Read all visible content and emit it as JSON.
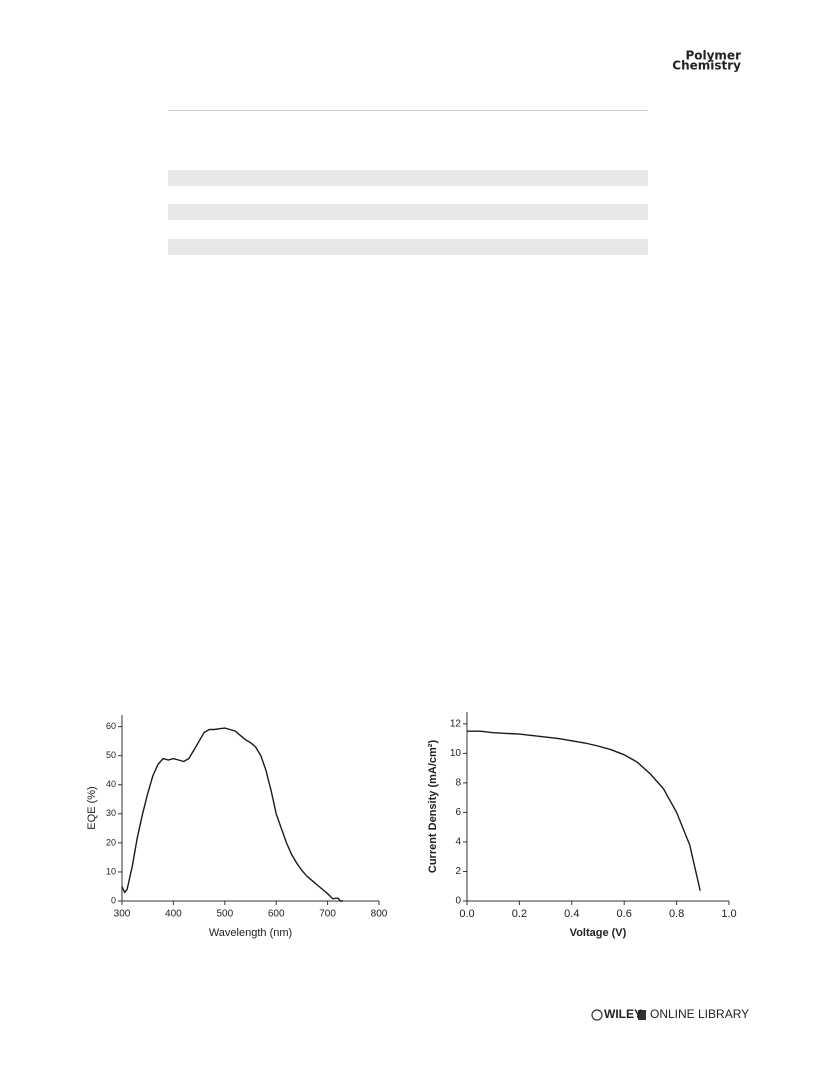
{
  "header": {
    "journal": [
      "Polymer",
      "Chemistry"
    ]
  },
  "chart_data": [
    {
      "type": "line",
      "x_label": "Wavelength (nm)",
      "y_label": "EQE (%)",
      "xlim": [
        300,
        800
      ],
      "xticks": [
        300,
        400,
        500,
        600,
        700,
        800
      ],
      "ylim": [
        0,
        64
      ],
      "yticks": [
        0,
        10,
        20,
        30,
        40,
        50,
        60
      ],
      "series": [
        {
          "color": "#1a1a1a",
          "x": [
            300,
            305,
            310,
            320,
            330,
            340,
            350,
            360,
            370,
            380,
            390,
            400,
            410,
            420,
            430,
            440,
            450,
            460,
            470,
            480,
            490,
            500,
            510,
            520,
            530,
            540,
            550,
            560,
            570,
            580,
            590,
            600,
            610,
            620,
            630,
            640,
            650,
            660,
            670,
            680,
            690,
            700,
            710,
            720,
            725,
            730
          ],
          "values": [
            5,
            3,
            4,
            12,
            22,
            30,
            37,
            43,
            47,
            49,
            48.5,
            49,
            48.5,
            48,
            49,
            52,
            55,
            58,
            59,
            59,
            59.3,
            59.5,
            59,
            58.5,
            57,
            55.5,
            54.5,
            53,
            50,
            45,
            38,
            30,
            25,
            20,
            16,
            13,
            10.5,
            8.5,
            7,
            5.5,
            4,
            2.5,
            0.8,
            1,
            0,
            0
          ]
        }
      ]
    },
    {
      "type": "line",
      "x_label": "Voltage (V)",
      "y_label": "Current Density (mA/cm²)",
      "xlim": [
        0,
        1
      ],
      "xticks": [
        {
          "value": 0,
          "label": "0.0"
        },
        0.2,
        0.4,
        0.6,
        0.8,
        {
          "value": 1,
          "label": "1.0"
        }
      ],
      "ylim": [
        0,
        12.8
      ],
      "yticks": [
        0,
        2,
        4,
        6,
        8,
        10,
        12
      ],
      "series": [
        {
          "color": "#1a1a1a",
          "x": [
            0,
            0.05,
            0.1,
            0.15,
            0.2,
            0.25,
            0.3,
            0.35,
            0.4,
            0.45,
            0.5,
            0.55,
            0.6,
            0.65,
            0.7,
            0.75,
            0.8,
            0.85,
            0.89
          ],
          "values": [
            11.5,
            11.5,
            11.4,
            11.35,
            11.3,
            11.2,
            11.1,
            11.0,
            10.85,
            10.7,
            10.5,
            10.25,
            9.9,
            9.4,
            8.6,
            7.6,
            6.0,
            3.8,
            0.7
          ]
        }
      ]
    }
  ],
  "footer": {
    "brand": "WILEY",
    "library": "ONLINE LIBRARY"
  }
}
